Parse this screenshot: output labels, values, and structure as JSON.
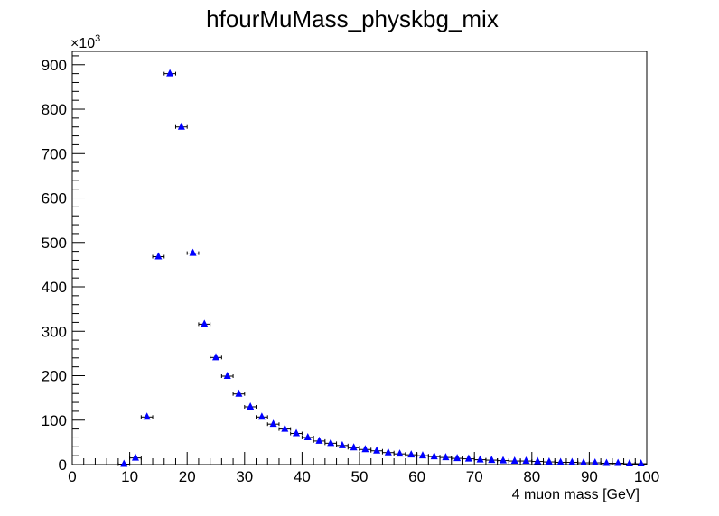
{
  "chart_data": {
    "type": "scatter",
    "title": "hfourMuMass_physkbg_mix",
    "xlabel": "4 muon mass [GeV]",
    "ylabel": "",
    "xlim": [
      0,
      100
    ],
    "ylim": [
      0,
      930
    ],
    "y_multiplier": {
      "base": "×10",
      "exponent": "3"
    },
    "x_tick_labels": [
      "0",
      "10",
      "20",
      "30",
      "40",
      "50",
      "60",
      "70",
      "80",
      "90",
      "100"
    ],
    "y_tick_labels": [
      "0",
      "100",
      "200",
      "300",
      "400",
      "500",
      "600",
      "700",
      "800",
      "900"
    ],
    "grid": false,
    "legend": "none",
    "marker_color": "#0000ff",
    "bin_half_width": 1,
    "series": [
      {
        "x": [
          9,
          11,
          13,
          15,
          17,
          19,
          21,
          23,
          25,
          27,
          29,
          31,
          33,
          35,
          37,
          39,
          41,
          43,
          45,
          47,
          49,
          51,
          53,
          55,
          57,
          59,
          61,
          63,
          65,
          67,
          69,
          71,
          73,
          75,
          77,
          79,
          81,
          83,
          85,
          87,
          89,
          91,
          93,
          95,
          97,
          99
        ],
        "values": [
          1,
          15,
          107,
          468,
          880,
          760,
          476,
          316,
          241,
          199,
          159,
          130,
          107,
          91,
          80,
          70,
          61,
          53,
          48,
          43,
          38,
          34,
          31,
          27,
          24,
          22,
          20,
          18,
          16,
          14,
          13,
          11,
          10,
          9,
          8,
          8,
          7,
          6,
          5,
          5,
          4,
          4,
          3,
          3,
          2,
          2
        ]
      }
    ]
  }
}
